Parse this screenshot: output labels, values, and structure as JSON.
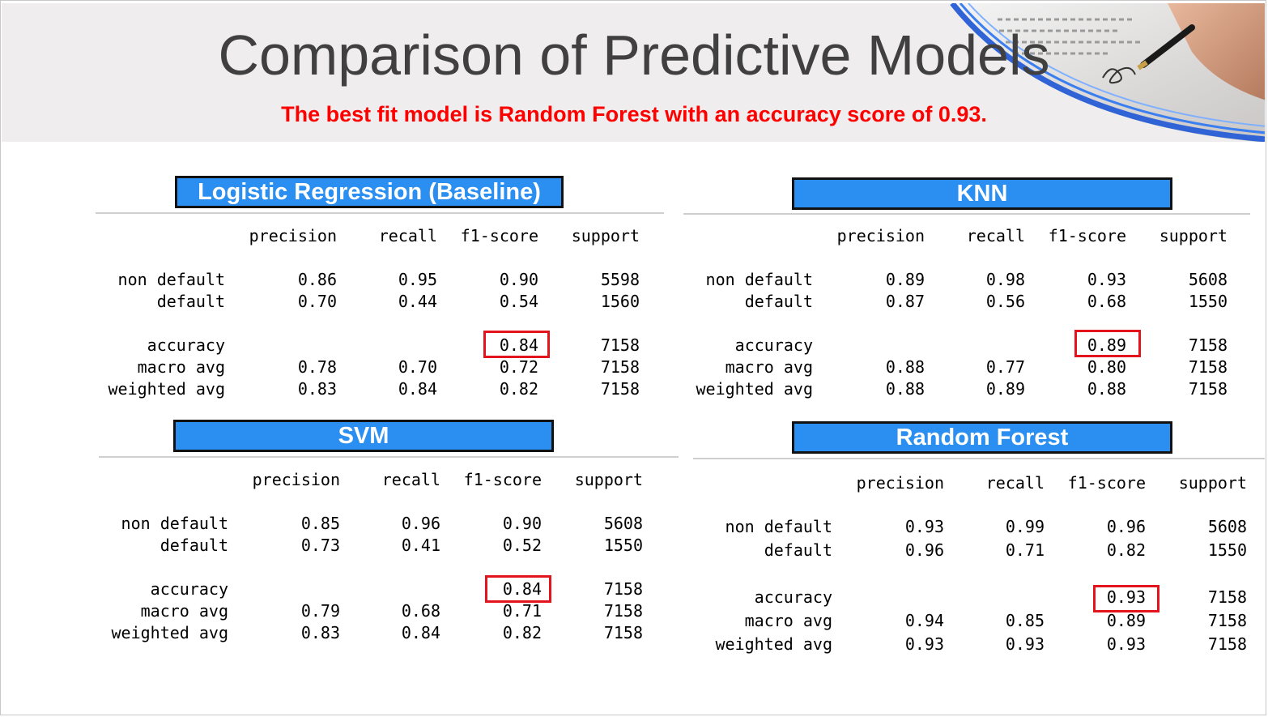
{
  "slide": {
    "title": "Comparison of Predictive Models",
    "subtitle": "The best fit model is Random Forest with an accuracy score of 0.93."
  },
  "colors": {
    "label_bg": "#2a8ff0",
    "subtitle": "#ff0000",
    "highlight": "#e3141b"
  },
  "column_headers": [
    "precision",
    "recall",
    "f1-score",
    "support"
  ],
  "models": [
    {
      "label": "Logistic Regression (Baseline)",
      "rows": [
        {
          "name": "non default",
          "precision": "0.86",
          "recall": "0.95",
          "f1": "0.90",
          "support": "5598"
        },
        {
          "name": "default",
          "precision": "0.70",
          "recall": "0.44",
          "f1": "0.54",
          "support": "1560"
        },
        {
          "name": "accuracy",
          "precision": "",
          "recall": "",
          "f1": "0.84",
          "support": "7158"
        },
        {
          "name": "macro avg",
          "precision": "0.78",
          "recall": "0.70",
          "f1": "0.72",
          "support": "7158"
        },
        {
          "name": "weighted avg",
          "precision": "0.83",
          "recall": "0.84",
          "f1": "0.82",
          "support": "7158"
        }
      ]
    },
    {
      "label": "KNN",
      "rows": [
        {
          "name": "non default",
          "precision": "0.89",
          "recall": "0.98",
          "f1": "0.93",
          "support": "5608"
        },
        {
          "name": "default",
          "precision": "0.87",
          "recall": "0.56",
          "f1": "0.68",
          "support": "1550"
        },
        {
          "name": "accuracy",
          "precision": "",
          "recall": "",
          "f1": "0.89",
          "support": "7158"
        },
        {
          "name": "macro avg",
          "precision": "0.88",
          "recall": "0.77",
          "f1": "0.80",
          "support": "7158"
        },
        {
          "name": "weighted avg",
          "precision": "0.88",
          "recall": "0.89",
          "f1": "0.88",
          "support": "7158"
        }
      ]
    },
    {
      "label": "SVM",
      "rows": [
        {
          "name": "non default",
          "precision": "0.85",
          "recall": "0.96",
          "f1": "0.90",
          "support": "5608"
        },
        {
          "name": "default",
          "precision": "0.73",
          "recall": "0.41",
          "f1": "0.52",
          "support": "1550"
        },
        {
          "name": "accuracy",
          "precision": "",
          "recall": "",
          "f1": "0.84",
          "support": "7158"
        },
        {
          "name": "macro avg",
          "precision": "0.79",
          "recall": "0.68",
          "f1": "0.71",
          "support": "7158"
        },
        {
          "name": "weighted avg",
          "precision": "0.83",
          "recall": "0.84",
          "f1": "0.82",
          "support": "7158"
        }
      ]
    },
    {
      "label": "Random Forest",
      "rows": [
        {
          "name": "non default",
          "precision": "0.93",
          "recall": "0.99",
          "f1": "0.96",
          "support": "5608"
        },
        {
          "name": "default",
          "precision": "0.96",
          "recall": "0.71",
          "f1": "0.82",
          "support": "1550"
        },
        {
          "name": "accuracy",
          "precision": "",
          "recall": "",
          "f1": "0.93",
          "support": "7158"
        },
        {
          "name": "macro avg",
          "precision": "0.94",
          "recall": "0.85",
          "f1": "0.89",
          "support": "7158"
        },
        {
          "name": "weighted avg",
          "precision": "0.93",
          "recall": "0.93",
          "f1": "0.93",
          "support": "7158"
        }
      ]
    }
  ]
}
